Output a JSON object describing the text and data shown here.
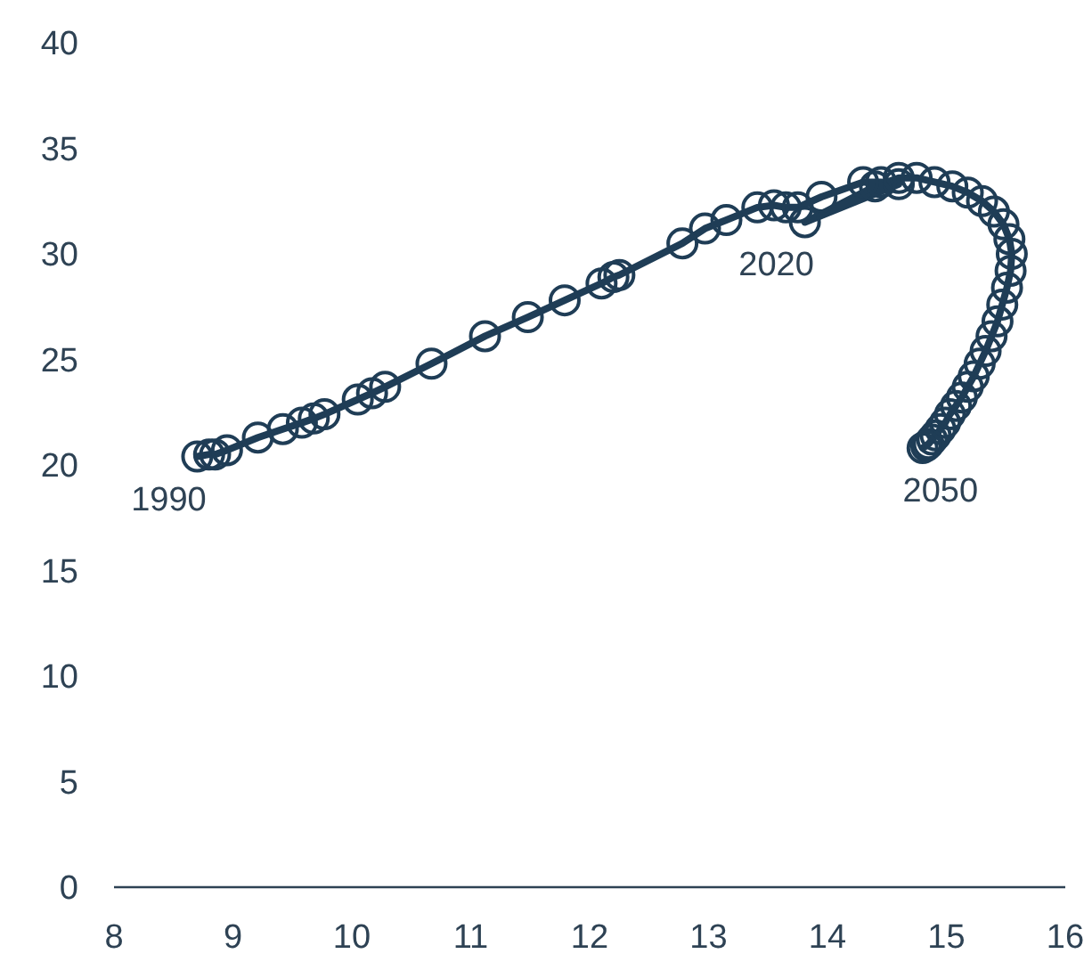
{
  "chart_data": {
    "type": "line",
    "marker": "circle",
    "line_style": "solid",
    "xlim": [
      8,
      16
    ],
    "xticks": [
      8,
      9,
      10,
      11,
      12,
      13,
      14,
      15,
      16
    ],
    "ylim": [
      0,
      40
    ],
    "yticks": [
      0,
      5,
      10,
      15,
      20,
      25,
      30,
      35,
      40
    ],
    "x": [
      8.7,
      8.8,
      8.85,
      8.95,
      9.21,
      9.42,
      9.58,
      9.68,
      9.77,
      10.05,
      10.17,
      10.28,
      10.67,
      11.12,
      11.48,
      11.79,
      12.1,
      12.2,
      12.25,
      12.78,
      12.97,
      13.15,
      13.41,
      13.55,
      13.65,
      13.75,
      13.95,
      14.3,
      14.45,
      14.6,
      13.81,
      14.4,
      14.6,
      14.75,
      14.9,
      15.05,
      15.18,
      15.3,
      15.4,
      15.48,
      15.53,
      15.55,
      15.54,
      15.51,
      15.47,
      15.43,
      15.38,
      15.33,
      15.28,
      15.23,
      15.18,
      15.13,
      15.08,
      15.03,
      14.99,
      14.95,
      14.91,
      14.88,
      14.85,
      14.83,
      14.8
    ],
    "series": [
      {
        "color": "#1f3d56",
        "values": [
          20.4,
          20.5,
          20.5,
          20.7,
          21.3,
          21.7,
          22.0,
          22.2,
          22.4,
          23.1,
          23.4,
          23.7,
          24.8,
          26.1,
          27.0,
          27.8,
          28.6,
          28.9,
          29.0,
          30.5,
          31.2,
          31.6,
          32.2,
          32.3,
          32.2,
          32.2,
          32.7,
          33.4,
          33.4,
          33.3,
          31.5,
          33.2,
          33.6,
          33.6,
          33.4,
          33.2,
          32.9,
          32.5,
          32.0,
          31.4,
          30.7,
          30.0,
          29.2,
          28.4,
          27.6,
          26.8,
          26.1,
          25.4,
          24.8,
          24.2,
          23.7,
          23.2,
          22.8,
          22.4,
          22.0,
          21.7,
          21.4,
          21.2,
          21.0,
          20.9,
          20.8
        ]
      }
    ],
    "annotations": [
      {
        "text": "1990",
        "x": 8.7,
        "y": 20.4
      },
      {
        "text": "2020",
        "x": 13.81,
        "y": 31.5
      },
      {
        "text": "2050",
        "x": 14.8,
        "y": 20.8
      }
    ]
  }
}
